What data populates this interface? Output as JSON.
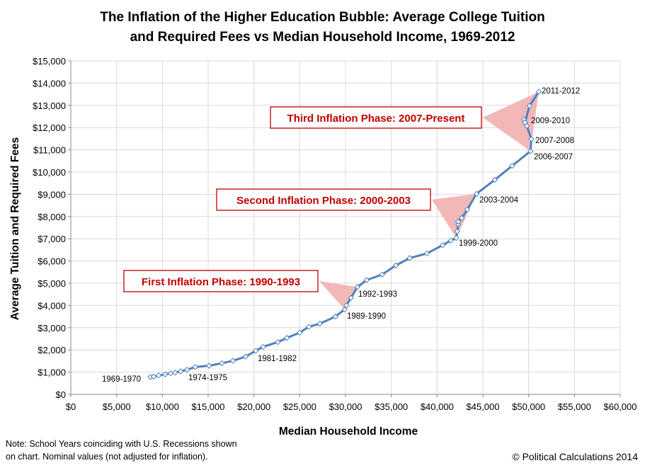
{
  "chart_data": {
    "type": "line",
    "title": [
      "The Inflation of the Higher Education Bubble: Average College Tuition",
      "and Required Fees vs Median Household Income, 1969-2012"
    ],
    "xlabel": "Median Household Income",
    "ylabel": "Average Tuition and Required Fees",
    "xlim": [
      0,
      60000
    ],
    "ylim": [
      0,
      15000
    ],
    "x_ticks": [
      "$0",
      "$5,000",
      "$10,000",
      "$15,000",
      "$20,000",
      "$25,000",
      "$30,000",
      "$35,000",
      "$40,000",
      "$45,000",
      "$50,000",
      "$55,000",
      "$60,000"
    ],
    "y_ticks": [
      "$0",
      "$1,000",
      "$2,000",
      "$3,000",
      "$4,000",
      "$5,000",
      "$6,000",
      "$7,000",
      "$8,000",
      "$9,000",
      "$10,000",
      "$11,000",
      "$12,000",
      "$13,000",
      "$14,000",
      "$15,000"
    ],
    "grid": true,
    "line_color": "#4f81bd",
    "series": [
      {
        "x": [
          8700,
          9050,
          9600,
          10300,
          10900,
          11400,
          12000,
          12700,
          13600,
          15100,
          16500,
          17700,
          19100,
          20200,
          21000,
          22600,
          23600,
          25000,
          26000,
          27200,
          28900,
          29900,
          30100,
          30600,
          31300,
          32300,
          34000,
          35500,
          37000,
          38900,
          40600,
          41500,
          42100,
          42200,
          42300,
          42300,
          42700,
          43300,
          44300,
          46300,
          48200,
          50200,
          50300,
          49800,
          49500,
          49600,
          50100,
          51100
        ],
        "y": [
          780,
          800,
          850,
          900,
          950,
          980,
          1040,
          1110,
          1230,
          1290,
          1400,
          1510,
          1700,
          1960,
          2140,
          2350,
          2540,
          2780,
          3040,
          3180,
          3500,
          3820,
          4000,
          4340,
          4830,
          5140,
          5390,
          5800,
          6130,
          6340,
          6710,
          6920,
          7030,
          7330,
          7650,
          7770,
          7930,
          8310,
          9020,
          9650,
          10280,
          10940,
          11480,
          12070,
          12360,
          12230,
          12980,
          13610
        ]
      }
    ],
    "point_labels": [
      {
        "text": "1969-1970",
        "x": 8700,
        "y": 780
      },
      {
        "text": "1974-1975",
        "x": 11400,
        "y": 980
      },
      {
        "text": "1981-1982",
        "x": 19100,
        "y": 1700
      },
      {
        "text": "1989-1990",
        "x": 29900,
        "y": 3820
      },
      {
        "text": "1992-1993",
        "x": 31300,
        "y": 4830
      },
      {
        "text": "1999-2000",
        "x": 42100,
        "y": 7030
      },
      {
        "text": "2003-2004",
        "x": 44300,
        "y": 9020
      },
      {
        "text": "2006-2007",
        "x": 50200,
        "y": 10940
      },
      {
        "text": "2007-2008",
        "x": 50300,
        "y": 11480
      },
      {
        "text": "2009-2010",
        "x": 49500,
        "y": 12360
      },
      {
        "text": "2011-2012",
        "x": 51100,
        "y": 13610
      }
    ],
    "annotations": [
      {
        "text": "First Inflation Phase: 1990-1993",
        "color": "#c00000",
        "spans": [
          [
            29900,
            3820
          ],
          [
            31300,
            4830
          ]
        ]
      },
      {
        "text": "Second Inflation Phase: 2000-2003",
        "color": "#c00000",
        "spans": [
          [
            42100,
            7030
          ],
          [
            44300,
            9020
          ]
        ]
      },
      {
        "text": "Third Inflation Phase: 2007-Present",
        "color": "#c00000",
        "spans": [
          [
            50200,
            10940
          ],
          [
            51100,
            13610
          ]
        ]
      }
    ],
    "annotation_fill": "#f2b8b8"
  },
  "note": [
    "Note: School Years coinciding with U.S. Recessions shown",
    "on chart.  Nominal values (not adjusted for inflation)."
  ],
  "copyright": "© Political Calculations 2014"
}
